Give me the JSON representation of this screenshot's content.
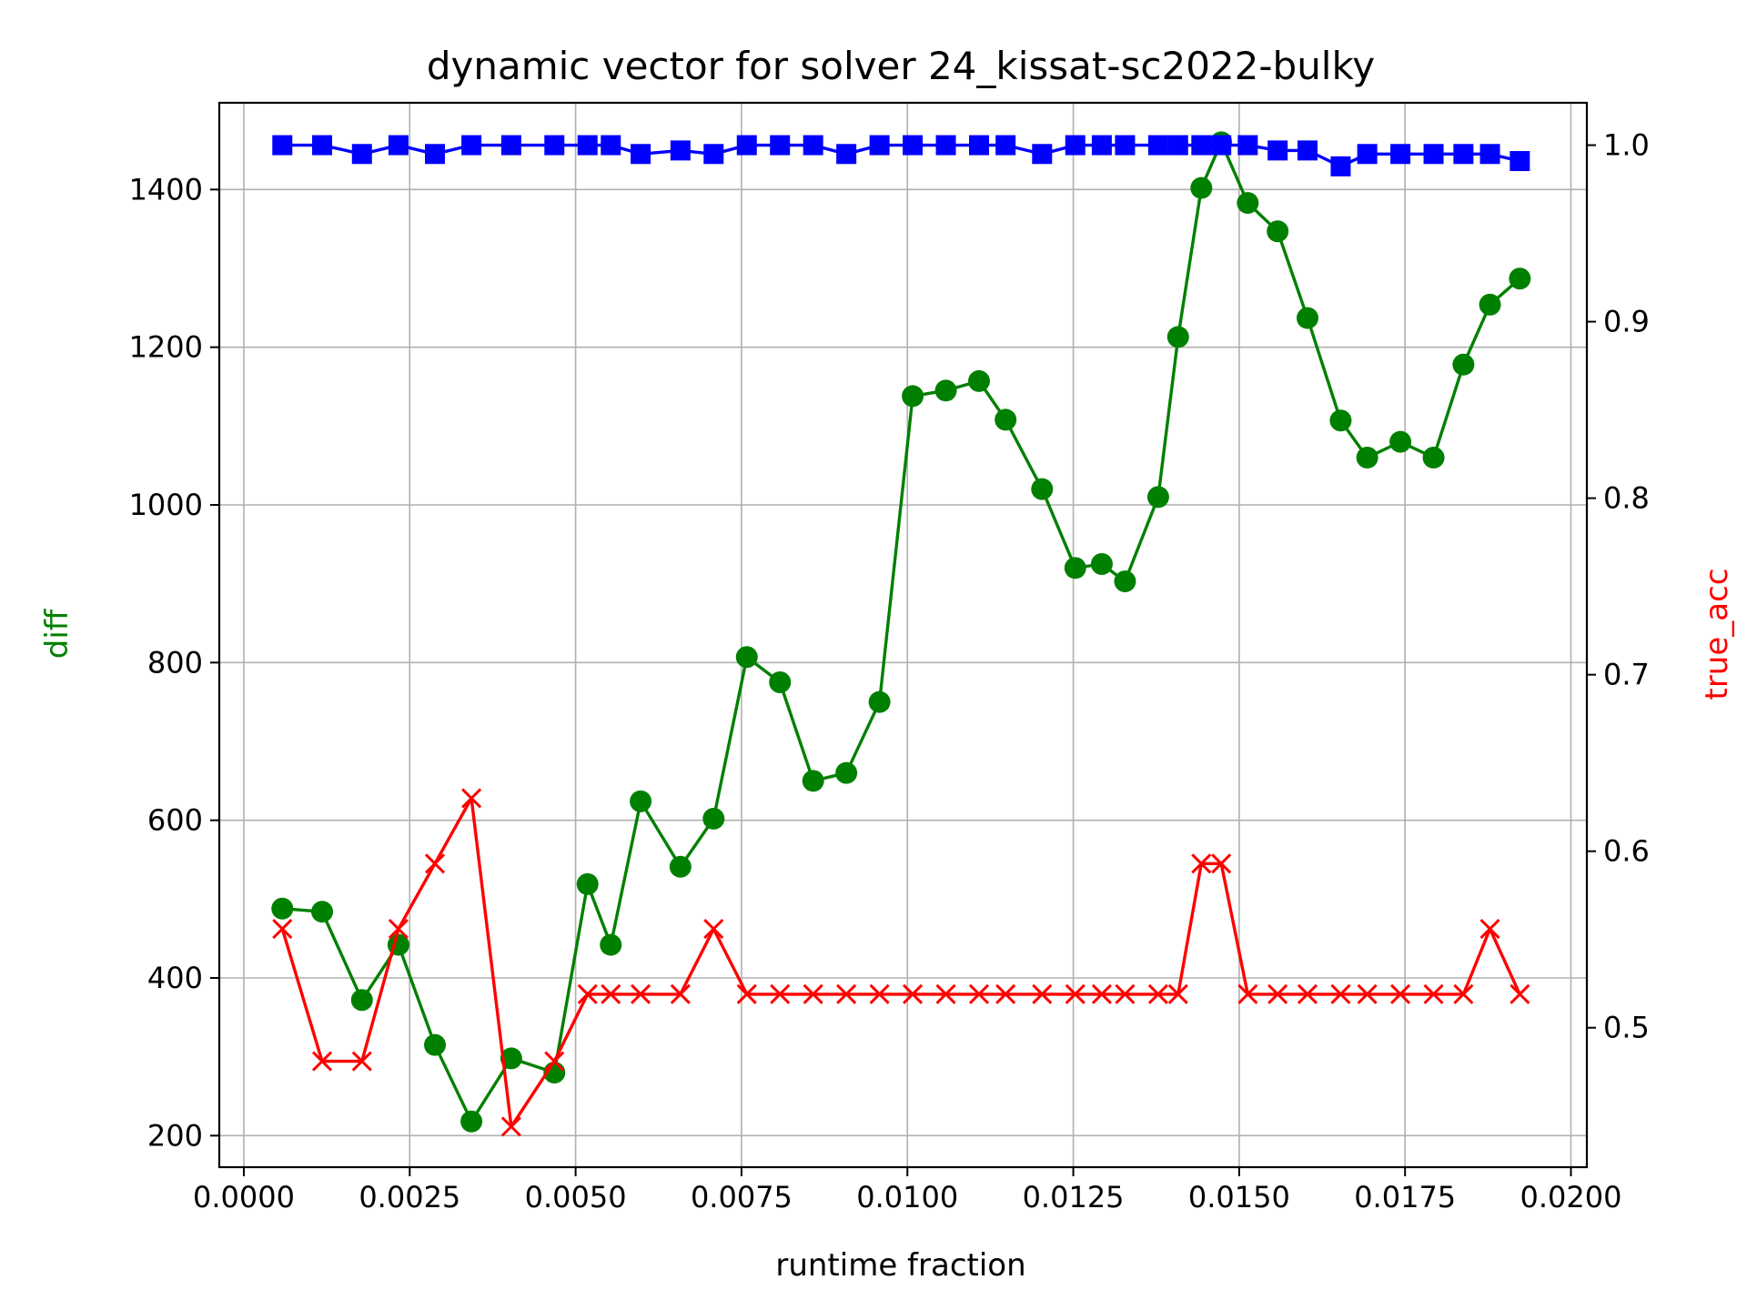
{
  "chart_data": {
    "type": "line",
    "title": "dynamic vector for solver 24_kissat-sc2022-bulky",
    "xlabel": "runtime fraction",
    "ylabel_left": "diff",
    "ylabel_right": "true_acc",
    "xlim": [
      -0.00037,
      0.02024
    ],
    "ylim_left": [
      160,
      1510
    ],
    "ylim_right": [
      0.421,
      1.024
    ],
    "x_ticks": [
      "0.0000",
      "0.0025",
      "0.0050",
      "0.0075",
      "0.0100",
      "0.0125",
      "0.0150",
      "0.0175",
      "0.0200"
    ],
    "y_ticks_left": [
      "200",
      "400",
      "600",
      "800",
      "1000",
      "1200",
      "1400"
    ],
    "y_ticks_right": [
      "0.5",
      "0.6",
      "0.7",
      "0.8",
      "0.9",
      "1.0"
    ],
    "grid": true,
    "x": [
      0.00058,
      0.00118,
      0.00178,
      0.00233,
      0.00288,
      0.00343,
      0.00403,
      0.00468,
      0.00518,
      0.00553,
      0.00598,
      0.00658,
      0.00708,
      0.00758,
      0.00808,
      0.00858,
      0.00908,
      0.00958,
      0.01008,
      0.01058,
      0.01108,
      0.01148,
      0.01203,
      0.01253,
      0.01293,
      0.01328,
      0.01378,
      0.01408,
      0.01443,
      0.01473,
      0.01513,
      0.01558,
      0.01603,
      0.01653,
      0.01693,
      0.01743,
      0.01793,
      0.01838,
      0.01878,
      0.01923
    ],
    "series": [
      {
        "axis": "left",
        "color": "#008000",
        "marker": "circle",
        "values": [
          488,
          484,
          372,
          442,
          315,
          218,
          298,
          280,
          519,
          442,
          624,
          541,
          602,
          807,
          775,
          650,
          660,
          750,
          1138,
          1145,
          1157,
          1108,
          1020,
          920,
          925,
          903,
          1010,
          1213,
          1402,
          1460,
          1383,
          1347,
          1237,
          1107,
          1060,
          1080,
          1060,
          1178,
          1254,
          1287
        ]
      },
      {
        "axis": "right",
        "color": "#ff0000",
        "marker": "x",
        "values": [
          0.556,
          0.481,
          0.481,
          0.556,
          0.593,
          0.63,
          0.444,
          0.481,
          0.519,
          0.519,
          0.519,
          0.519,
          0.556,
          0.519,
          0.519,
          0.519,
          0.519,
          0.519,
          0.519,
          0.519,
          0.519,
          0.519,
          0.519,
          0.519,
          0.519,
          0.519,
          0.519,
          0.519,
          0.593,
          0.593,
          0.519,
          0.519,
          0.519,
          0.519,
          0.519,
          0.519,
          0.519,
          0.519,
          0.556,
          0.519
        ]
      },
      {
        "axis": "right",
        "color": "#0000ff",
        "marker": "square",
        "values": [
          1.0,
          1.0,
          0.995,
          1.0,
          0.995,
          1.0,
          1.0,
          1.0,
          1.0,
          1.0,
          0.995,
          0.997,
          0.995,
          1.0,
          1.0,
          1.0,
          0.995,
          1.0,
          1.0,
          1.0,
          1.0,
          1.0,
          0.995,
          1.0,
          1.0,
          1.0,
          1.0,
          1.0,
          1.0,
          1.0,
          1.0,
          0.997,
          0.997,
          0.988,
          0.995,
          0.995,
          0.995,
          0.995,
          0.995,
          0.991
        ]
      }
    ]
  }
}
